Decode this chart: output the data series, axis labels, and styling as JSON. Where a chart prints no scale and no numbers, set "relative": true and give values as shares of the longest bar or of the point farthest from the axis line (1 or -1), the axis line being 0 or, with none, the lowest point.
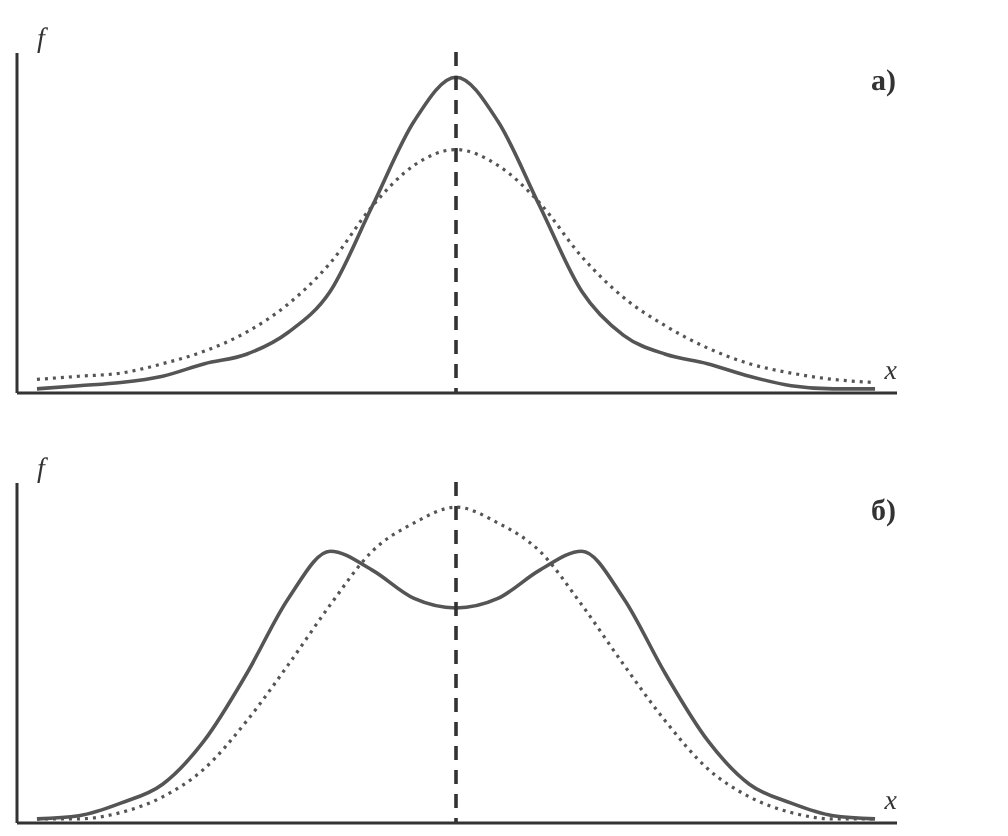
{
  "chart_data": [
    {
      "type": "line",
      "relative": true,
      "xlabel": "x",
      "ylabel": "f",
      "annotations": [
        "а)"
      ],
      "categories": [
        null,
        null,
        null,
        null,
        null,
        null,
        null,
        null,
        null,
        null,
        null,
        null,
        null,
        null,
        null,
        null,
        null,
        null,
        null,
        null,
        null
      ],
      "series": [
        {
          "color": "#555555",
          "line_style": "solid",
          "values": [
            0.01,
            0.02,
            0.03,
            0.05,
            0.09,
            0.12,
            0.19,
            0.32,
            0.59,
            0.86,
            1,
            0.86,
            0.59,
            0.32,
            0.18,
            0.12,
            0.09,
            0.05,
            0.02,
            0.01,
            0.01
          ]
        },
        {
          "color": "#555555",
          "line_style": "dotted",
          "values": [
            0.04,
            0.05,
            0.06,
            0.09,
            0.13,
            0.19,
            0.28,
            0.41,
            0.59,
            0.72,
            0.77,
            0.72,
            0.6,
            0.43,
            0.3,
            0.21,
            0.14,
            0.09,
            0.06,
            0.04,
            0.03
          ]
        }
      ]
    },
    {
      "type": "line",
      "relative": true,
      "xlabel": "x",
      "ylabel": "f",
      "annotations": [
        "б)"
      ],
      "categories": [
        null,
        null,
        null,
        null,
        null,
        null,
        null,
        null,
        null,
        null,
        null,
        null,
        null,
        null,
        null,
        null,
        null,
        null,
        null,
        null,
        null
      ],
      "series": [
        {
          "color": "#555555",
          "line_style": "solid",
          "values": [
            0.01,
            0.02,
            0.06,
            0.12,
            0.26,
            0.47,
            0.71,
            0.86,
            0.8,
            0.71,
            0.68,
            0.71,
            0.8,
            0.86,
            0.71,
            0.47,
            0.26,
            0.12,
            0.06,
            0.02,
            0.01
          ]
        },
        {
          "color": "#555555",
          "line_style": "dotted",
          "values": [
            0.01,
            0.01,
            0.03,
            0.08,
            0.17,
            0.32,
            0.5,
            0.69,
            0.86,
            0.95,
            1,
            0.95,
            0.86,
            0.69,
            0.5,
            0.32,
            0.17,
            0.08,
            0.03,
            0.01,
            0.01
          ]
        }
      ]
    }
  ]
}
